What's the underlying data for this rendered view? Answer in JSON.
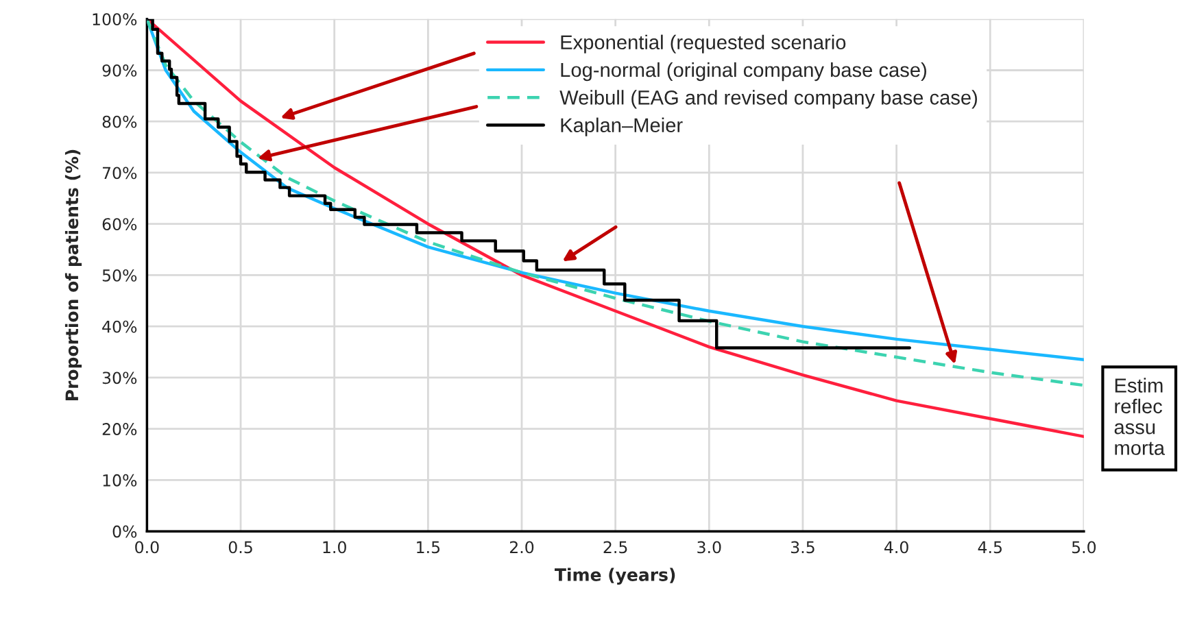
{
  "chart_data": {
    "type": "line",
    "xlabel": "Time (years)",
    "ylabel": "Proportion of patients (%)",
    "xlim": [
      0,
      5
    ],
    "xticks": [
      {
        "value": 0,
        "label": "0.0"
      },
      {
        "value": 0.5,
        "label": "0.5"
      },
      {
        "value": 1,
        "label": "1.0"
      },
      {
        "value": 1.5,
        "label": "1.5"
      },
      {
        "value": 2,
        "label": "2.0"
      },
      {
        "value": 2.5,
        "label": "2.5"
      },
      {
        "value": 3,
        "label": "3.0"
      },
      {
        "value": 3.5,
        "label": "3.5"
      },
      {
        "value": 4,
        "label": "4.0"
      },
      {
        "value": 4.5,
        "label": "4.5"
      },
      {
        "value": 5,
        "label": "5.0"
      }
    ],
    "ylim": [
      0,
      100
    ],
    "yticks": [
      {
        "value": 0,
        "label": "0%"
      },
      {
        "value": 10,
        "label": "10%"
      },
      {
        "value": 20,
        "label": "20%"
      },
      {
        "value": 30,
        "label": "30%"
      },
      {
        "value": 40,
        "label": "40%"
      },
      {
        "value": 50,
        "label": "50%"
      },
      {
        "value": 60,
        "label": "60%"
      },
      {
        "value": 70,
        "label": "70%"
      },
      {
        "value": 80,
        "label": "80%"
      },
      {
        "value": 90,
        "label": "90%"
      },
      {
        "value": 100,
        "label": "100%"
      }
    ],
    "grid": true,
    "legend": "top right",
    "series": [
      {
        "name": "Exponential (requested scenario",
        "color": "#ff1f3d",
        "line_style": "solid",
        "x": [
          0,
          0.5,
          1,
          1.5,
          2,
          2.5,
          3,
          3.5,
          4,
          4.5,
          5
        ],
        "values": [
          100,
          84,
          71,
          60,
          50,
          43,
          36,
          30.5,
          25.5,
          22,
          18.5
        ]
      },
      {
        "name": "Log-normal (original company base case)",
        "color": "#1ab8ff",
        "line_style": "solid",
        "x": [
          0,
          0.1,
          0.25,
          0.5,
          0.75,
          1,
          1.5,
          2,
          2.5,
          3,
          3.5,
          4,
          4.5,
          5
        ],
        "values": [
          100,
          90,
          82,
          74,
          67,
          63,
          55.5,
          50.5,
          46.5,
          43,
          40,
          37.5,
          35.5,
          33.5
        ]
      },
      {
        "name": "Weibull (EAG and revised company base case)",
        "color": "#3cd3b0",
        "line_style": "dashed",
        "x": [
          0,
          0.1,
          0.25,
          0.5,
          0.75,
          1,
          1.5,
          2,
          2.5,
          3,
          3.5,
          4,
          4.5,
          5
        ],
        "values": [
          100,
          91,
          84,
          76,
          69,
          64.5,
          56.5,
          50.5,
          45.5,
          41,
          37,
          34,
          31,
          28.5
        ]
      },
      {
        "name": "Kaplan–Meier",
        "type": "step",
        "color": "#000000",
        "line_style": "solid",
        "x": [
          0,
          0.03,
          0.057,
          0.08,
          0.12,
          0.13,
          0.16,
          0.17,
          0.31,
          0.38,
          0.44,
          0.48,
          0.5,
          0.53,
          0.63,
          0.71,
          0.76,
          0.95,
          0.98,
          1.11,
          1.16,
          1.44,
          1.68,
          1.86,
          2.01,
          2.08,
          2.44,
          2.55,
          2.84,
          3.04,
          4.07
        ],
        "values": [
          100,
          98,
          93.3,
          91.8,
          90.2,
          88.6,
          85.1,
          83.5,
          80.5,
          78.9,
          76.1,
          73.2,
          71.7,
          70.1,
          68.6,
          67.1,
          65.5,
          64.0,
          62.8,
          61.3,
          59.9,
          58.3,
          56.7,
          54.7,
          52.8,
          51.0,
          48.3,
          45.1,
          41.1,
          35.8,
          35.8
        ]
      }
    ],
    "annotations": [
      "Estim\nreflec\nassu\nmorta"
    ]
  }
}
